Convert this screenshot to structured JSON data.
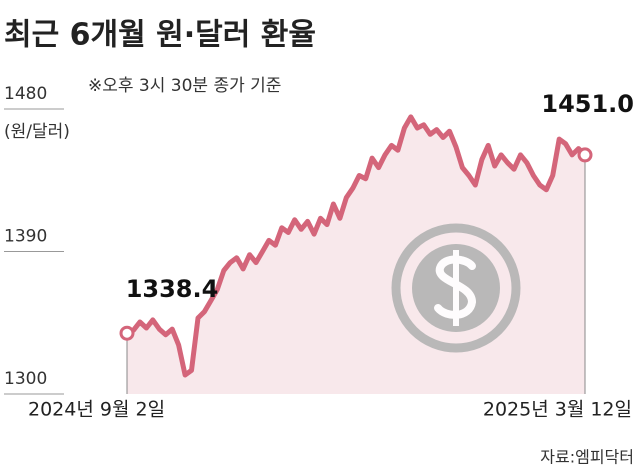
{
  "chart_data": {
    "type": "line",
    "title": "최근 6개월 원·달러 환율",
    "subtitle": "※오후 3시 30분 종가 기준",
    "y_label": "(원/달러)",
    "source": "자료:엠피닥터",
    "categories": [
      "2024년 9월 2일",
      null,
      null,
      null,
      null,
      null,
      null,
      null,
      null,
      null,
      null,
      null,
      null,
      null,
      null,
      null,
      null,
      null,
      null,
      null,
      null,
      null,
      null,
      null,
      null,
      null,
      null,
      null,
      null,
      null,
      null,
      null,
      null,
      null,
      null,
      null,
      null,
      null,
      null,
      null,
      null,
      null,
      null,
      null,
      null,
      null,
      null,
      null,
      null,
      null,
      null,
      null,
      null,
      null,
      null,
      null,
      null,
      null,
      null,
      null,
      null,
      null,
      null,
      null,
      null,
      null,
      null,
      null,
      null,
      null,
      null,
      "2025년 3월 12일"
    ],
    "values": [
      1338.4,
      1340.3,
      1345.5,
      1341.7,
      1346.8,
      1341,
      1337.4,
      1341,
      1331,
      1312,
      1315,
      1348,
      1352,
      1359,
      1366,
      1378,
      1383,
      1386,
      1379,
      1388,
      1383,
      1390,
      1397,
      1394,
      1405,
      1402,
      1410,
      1404,
      1409,
      1401,
      1411,
      1407,
      1420,
      1411,
      1424,
      1430,
      1438,
      1436,
      1449,
      1443,
      1451,
      1457,
      1454,
      1468,
      1475,
      1468,
      1470,
      1464,
      1467,
      1462,
      1466,
      1456,
      1443,
      1438,
      1432,
      1448,
      1457,
      1444,
      1451,
      1446,
      1442,
      1451,
      1446,
      1438,
      1432,
      1429,
      1438,
      1461,
      1458,
      1451,
      1455,
      1451.0
    ],
    "value_labels": [
      "1338.4",
      null,
      null,
      null,
      null,
      null,
      null,
      null,
      null,
      null,
      null,
      null,
      null,
      null,
      null,
      null,
      null,
      null,
      null,
      null,
      null,
      null,
      null,
      null,
      null,
      null,
      null,
      null,
      null,
      null,
      null,
      null,
      null,
      null,
      null,
      null,
      null,
      null,
      null,
      null,
      null,
      null,
      null,
      null,
      null,
      null,
      null,
      null,
      null,
      null,
      null,
      null,
      null,
      null,
      null,
      null,
      null,
      null,
      null,
      null,
      null,
      null,
      null,
      null,
      null,
      null,
      null,
      null,
      null,
      null,
      null,
      "1451.0"
    ],
    "color": "#d4657a",
    "area_color": "#f8e8eb",
    "ylim": [
      1300,
      1480
    ],
    "yticks": [
      1300,
      1390,
      1480
    ]
  }
}
